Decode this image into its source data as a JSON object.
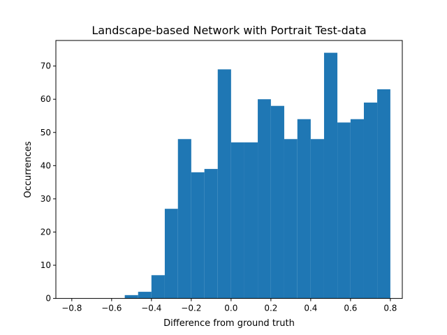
{
  "chart_data": {
    "type": "bar",
    "title": "Landscape-based Network with Portrait Test-data",
    "xlabel": "Difference from ground truth",
    "ylabel": "Occurrences",
    "xlim": [
      -0.88,
      0.86
    ],
    "ylim": [
      0,
      77.7
    ],
    "xticks": [
      -0.8,
      -0.6,
      -0.4,
      -0.2,
      0.0,
      0.2,
      0.4,
      0.6,
      0.8
    ],
    "xtick_labels": [
      "−0.8",
      "−0.6",
      "−0.4",
      "−0.2",
      "0.0",
      "0.2",
      "0.4",
      "0.6",
      "0.8"
    ],
    "yticks": [
      0,
      10,
      20,
      30,
      40,
      50,
      60,
      70
    ],
    "ytick_labels": [
      "0",
      "10",
      "20",
      "30",
      "40",
      "50",
      "60",
      "70"
    ],
    "grid": false,
    "legend": "none",
    "bar_color": "#1f77b4",
    "bin_edges": [
      -0.534,
      -0.467,
      -0.4,
      -0.333,
      -0.267,
      -0.2,
      -0.134,
      -0.067,
      0.0,
      0.067,
      0.134,
      0.2,
      0.267,
      0.333,
      0.4,
      0.467,
      0.534,
      0.6,
      0.667,
      0.734,
      0.8
    ],
    "bins": [
      {
        "x0": -0.534,
        "x1": -0.467,
        "count": 1
      },
      {
        "x0": -0.467,
        "x1": -0.4,
        "count": 2
      },
      {
        "x0": -0.4,
        "x1": -0.333,
        "count": 7
      },
      {
        "x0": -0.333,
        "x1": -0.267,
        "count": 27
      },
      {
        "x0": -0.267,
        "x1": -0.2,
        "count": 48
      },
      {
        "x0": -0.2,
        "x1": -0.134,
        "count": 38
      },
      {
        "x0": -0.134,
        "x1": -0.067,
        "count": 39
      },
      {
        "x0": -0.067,
        "x1": 0.0,
        "count": 69
      },
      {
        "x0": 0.0,
        "x1": 0.067,
        "count": 47
      },
      {
        "x0": 0.067,
        "x1": 0.134,
        "count": 47
      },
      {
        "x0": 0.134,
        "x1": 0.2,
        "count": 60
      },
      {
        "x0": 0.2,
        "x1": 0.267,
        "count": 58
      },
      {
        "x0": 0.267,
        "x1": 0.333,
        "count": 48
      },
      {
        "x0": 0.333,
        "x1": 0.4,
        "count": 54
      },
      {
        "x0": 0.4,
        "x1": 0.467,
        "count": 48
      },
      {
        "x0": 0.467,
        "x1": 0.534,
        "count": 74
      },
      {
        "x0": 0.534,
        "x1": 0.6,
        "count": 53
      },
      {
        "x0": 0.6,
        "x1": 0.667,
        "count": 54
      },
      {
        "x0": 0.667,
        "x1": 0.734,
        "count": 59
      },
      {
        "x0": 0.734,
        "x1": 0.8,
        "count": 63
      }
    ]
  }
}
